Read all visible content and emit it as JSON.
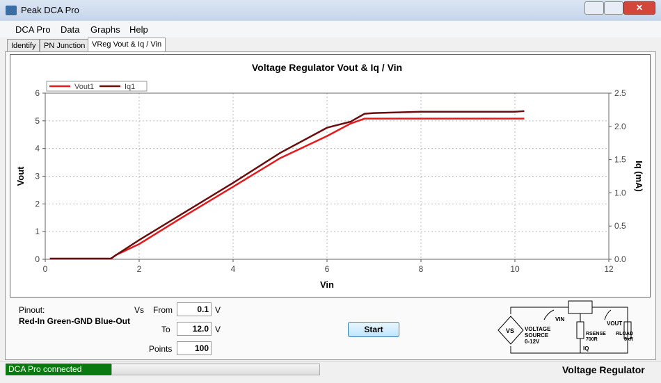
{
  "window": {
    "title": "Peak DCA Pro"
  },
  "menu": [
    "DCA Pro",
    "Data",
    "Graphs",
    "Help"
  ],
  "tabs": [
    "Identify",
    "PN Junction",
    "VReg Vout & Iq / Vin"
  ],
  "chart_data": {
    "type": "line",
    "title": "Voltage Regulator Vout & Iq / Vin",
    "x_label": "Vin",
    "y_label": "Vout",
    "y2_label": "Iq (mA)",
    "x": [
      0.1,
      1.4,
      1.5,
      2,
      3,
      4,
      5,
      6,
      6.5,
      6.8,
      7,
      8,
      9,
      10,
      10.2
    ],
    "series": [
      {
        "name": "Vout1",
        "color": "#e41a1c",
        "values": [
          0.02,
          0.02,
          0.15,
          0.55,
          1.6,
          2.62,
          3.65,
          4.45,
          4.9,
          5.08,
          5.08,
          5.08,
          5.08,
          5.08,
          5.08
        ]
      },
      {
        "name": "Iq1",
        "color": "#6b0d0d",
        "axis": "y2",
        "values": [
          0.01,
          0.01,
          0.06,
          0.29,
          0.72,
          1.15,
          1.6,
          1.98,
          2.07,
          2.19,
          2.2,
          2.22,
          2.22,
          2.22,
          2.23
        ]
      }
    ],
    "xlim": [
      0,
      12
    ],
    "xticks": [
      0,
      2,
      4,
      6,
      8,
      10,
      12
    ],
    "ylim": [
      0,
      6
    ],
    "yticks": [
      0,
      1,
      2,
      3,
      4,
      5,
      6
    ],
    "y2lim": [
      0,
      2.5
    ],
    "y2ticks": [
      {
        "value": 0,
        "label": "0.0"
      },
      {
        "value": 0.5,
        "label": "0.5"
      },
      {
        "value": 1,
        "label": "1.0"
      },
      {
        "value": 1.5,
        "label": "1.5"
      },
      {
        "value": 2,
        "label": "2.0"
      },
      {
        "value": 2.5,
        "label": "2.5"
      }
    ],
    "grid": true,
    "legend": "top-left"
  },
  "controls": {
    "pinout_label": "Pinout:",
    "pinout": "Red-In Green-GND Blue-Out",
    "vs": "Vs",
    "from_label": "From",
    "from": "0.1",
    "to_label": "To",
    "to": "12.0",
    "unit": "V",
    "points_label": "Points",
    "points": "100",
    "start": "Start"
  },
  "schematic": {
    "vs": "VS",
    "source": "VOLTAGE",
    "source2": "SOURCE",
    "source3": "0-12V",
    "vin": "VIN",
    "vout": "VOUT",
    "rsense": "RSENSE",
    "rsense_value": "700R",
    "rload": "RLOAD",
    "rload_value": "8kR",
    "iq": "IQ"
  },
  "status": {
    "connection": "DCA Pro connected",
    "mode": "Voltage Regulator"
  }
}
